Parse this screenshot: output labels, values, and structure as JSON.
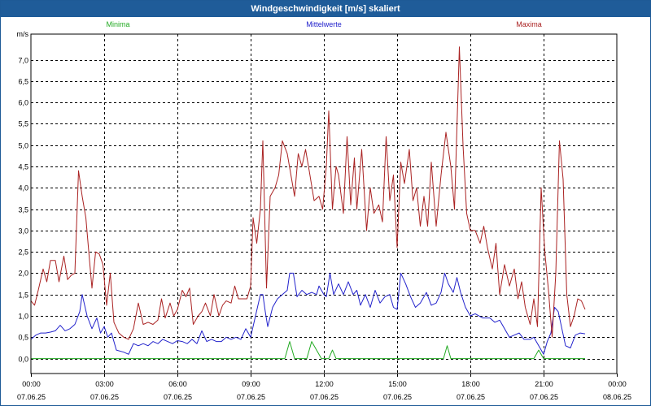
{
  "window": {
    "title": "Windgeschwindigkeit [m/s] skaliert"
  },
  "colors": {
    "minima": "#22aa22",
    "mittel": "#2222cc",
    "maxima": "#aa2222",
    "grid": "#000000"
  },
  "chart_data": {
    "type": "line",
    "title": "Windgeschwindigkeit [m/s] skaliert",
    "ylabel": "m/s",
    "ylim": [
      -0.35,
      7.6
    ],
    "xlim_hours": [
      0,
      24
    ],
    "grid": true,
    "legend_placement": "top",
    "yticks": [
      {
        "v": 0.0,
        "label": "0,0"
      },
      {
        "v": 0.5,
        "label": "0,5"
      },
      {
        "v": 1.0,
        "label": "1,0"
      },
      {
        "v": 1.5,
        "label": "1,5"
      },
      {
        "v": 2.0,
        "label": "2,0"
      },
      {
        "v": 2.5,
        "label": "2,5"
      },
      {
        "v": 3.0,
        "label": "3,0"
      },
      {
        "v": 3.5,
        "label": "3,5"
      },
      {
        "v": 4.0,
        "label": "4,0"
      },
      {
        "v": 4.5,
        "label": "4,5"
      },
      {
        "v": 5.0,
        "label": "5,0"
      },
      {
        "v": 5.5,
        "label": "5,5"
      },
      {
        "v": 6.0,
        "label": "6,0"
      },
      {
        "v": 6.5,
        "label": "6,5"
      },
      {
        "v": 7.0,
        "label": "7,0"
      }
    ],
    "xticks": [
      {
        "h": 0,
        "time": "00:00",
        "date": "07.06.25"
      },
      {
        "h": 3,
        "time": "03:00",
        "date": "07.06.25"
      },
      {
        "h": 6,
        "time": "06:00",
        "date": "07.06.25"
      },
      {
        "h": 9,
        "time": "09:00",
        "date": "07.06.25"
      },
      {
        "h": 12,
        "time": "12:00",
        "date": "07.06.25"
      },
      {
        "h": 15,
        "time": "15:00",
        "date": "07.06.25"
      },
      {
        "h": 18,
        "time": "18:00",
        "date": "07.06.25"
      },
      {
        "h": 21,
        "time": "21:00",
        "date": "07.06.25"
      },
      {
        "h": 24,
        "time": "00:00",
        "date": "08.06.25"
      }
    ],
    "series": [
      {
        "name": "Minima",
        "color": "#22aa22",
        "points": [
          [
            0,
            0
          ],
          [
            10.4,
            0
          ],
          [
            10.6,
            0.4
          ],
          [
            10.8,
            0
          ],
          [
            11.3,
            0
          ],
          [
            11.5,
            0.4
          ],
          [
            11.9,
            0
          ],
          [
            12.2,
            0
          ],
          [
            12.35,
            0.2
          ],
          [
            12.5,
            0
          ],
          [
            16.9,
            0
          ],
          [
            17.05,
            0.3
          ],
          [
            17.2,
            0
          ],
          [
            20.6,
            0
          ],
          [
            20.8,
            0.2
          ],
          [
            21.0,
            0
          ],
          [
            22.7,
            0
          ]
        ]
      },
      {
        "name": "Mittelwerte",
        "color": "#2222cc",
        "points": [
          [
            0,
            0.45
          ],
          [
            0.2,
            0.55
          ],
          [
            0.4,
            0.6
          ],
          [
            0.6,
            0.6
          ],
          [
            0.8,
            0.62
          ],
          [
            1.0,
            0.65
          ],
          [
            1.2,
            0.78
          ],
          [
            1.4,
            0.65
          ],
          [
            1.6,
            0.7
          ],
          [
            1.8,
            0.8
          ],
          [
            2.0,
            1.1
          ],
          [
            2.1,
            1.5
          ],
          [
            2.3,
            1.0
          ],
          [
            2.5,
            0.7
          ],
          [
            2.7,
            0.95
          ],
          [
            2.85,
            0.6
          ],
          [
            3.0,
            0.75
          ],
          [
            3.15,
            0.5
          ],
          [
            3.3,
            0.6
          ],
          [
            3.5,
            0.2
          ],
          [
            3.8,
            0.15
          ],
          [
            4.0,
            0.1
          ],
          [
            4.2,
            0.35
          ],
          [
            4.4,
            0.3
          ],
          [
            4.6,
            0.35
          ],
          [
            4.8,
            0.3
          ],
          [
            5.0,
            0.4
          ],
          [
            5.2,
            0.35
          ],
          [
            5.4,
            0.45
          ],
          [
            5.6,
            0.4
          ],
          [
            5.8,
            0.35
          ],
          [
            6.0,
            0.42
          ],
          [
            6.2,
            0.4
          ],
          [
            6.4,
            0.35
          ],
          [
            6.6,
            0.45
          ],
          [
            6.8,
            0.35
          ],
          [
            7.0,
            0.65
          ],
          [
            7.2,
            0.4
          ],
          [
            7.4,
            0.45
          ],
          [
            7.6,
            0.4
          ],
          [
            7.8,
            0.4
          ],
          [
            8.0,
            0.5
          ],
          [
            8.2,
            0.45
          ],
          [
            8.4,
            0.5
          ],
          [
            8.6,
            0.45
          ],
          [
            8.8,
            0.7
          ],
          [
            9.0,
            0.5
          ],
          [
            9.2,
            1.0
          ],
          [
            9.4,
            1.5
          ],
          [
            9.5,
            1.5
          ],
          [
            9.6,
            1.1
          ],
          [
            9.7,
            0.75
          ],
          [
            9.9,
            1.2
          ],
          [
            10.1,
            1.4
          ],
          [
            10.3,
            1.5
          ],
          [
            10.5,
            1.6
          ],
          [
            10.6,
            2.0
          ],
          [
            10.75,
            2.0
          ],
          [
            10.9,
            1.45
          ],
          [
            11.1,
            1.6
          ],
          [
            11.3,
            1.5
          ],
          [
            11.5,
            1.55
          ],
          [
            11.7,
            1.5
          ],
          [
            11.8,
            1.7
          ],
          [
            12.0,
            1.5
          ],
          [
            12.1,
            1.45
          ],
          [
            12.25,
            2.0
          ],
          [
            12.4,
            1.5
          ],
          [
            12.6,
            1.75
          ],
          [
            12.8,
            1.5
          ],
          [
            13.0,
            1.8
          ],
          [
            13.2,
            1.5
          ],
          [
            13.35,
            1.6
          ],
          [
            13.5,
            1.25
          ],
          [
            13.7,
            1.5
          ],
          [
            13.9,
            1.2
          ],
          [
            14.1,
            1.6
          ],
          [
            14.3,
            1.3
          ],
          [
            14.5,
            1.45
          ],
          [
            14.7,
            1.5
          ],
          [
            14.85,
            1.2
          ],
          [
            15.0,
            1.15
          ],
          [
            15.15,
            2.0
          ],
          [
            15.35,
            1.75
          ],
          [
            15.55,
            1.45
          ],
          [
            15.75,
            1.2
          ],
          [
            15.95,
            1.3
          ],
          [
            16.2,
            1.55
          ],
          [
            16.4,
            1.25
          ],
          [
            16.6,
            1.3
          ],
          [
            16.8,
            1.55
          ],
          [
            16.95,
            2.0
          ],
          [
            17.1,
            1.75
          ],
          [
            17.3,
            1.55
          ],
          [
            17.45,
            1.9
          ],
          [
            17.6,
            1.55
          ],
          [
            17.8,
            1.2
          ],
          [
            18.0,
            1.0
          ],
          [
            18.2,
            1.05
          ],
          [
            18.5,
            0.95
          ],
          [
            18.8,
            0.95
          ],
          [
            19.0,
            0.85
          ],
          [
            19.2,
            0.9
          ],
          [
            19.4,
            0.7
          ],
          [
            19.6,
            0.5
          ],
          [
            19.8,
            0.55
          ],
          [
            20.0,
            0.6
          ],
          [
            20.2,
            0.45
          ],
          [
            20.45,
            0.45
          ],
          [
            20.6,
            0.5
          ],
          [
            20.8,
            0.3
          ],
          [
            21.0,
            0.1
          ],
          [
            21.15,
            0.4
          ],
          [
            21.3,
            0.6
          ],
          [
            21.45,
            1.2
          ],
          [
            21.6,
            1.1
          ],
          [
            21.75,
            0.7
          ],
          [
            21.9,
            0.3
          ],
          [
            22.1,
            0.25
          ],
          [
            22.3,
            0.55
          ],
          [
            22.5,
            0.6
          ],
          [
            22.7,
            0.58
          ]
        ]
      },
      {
        "name": "Maxima",
        "color": "#aa2222",
        "points": [
          [
            0,
            1.35
          ],
          [
            0.15,
            1.25
          ],
          [
            0.3,
            1.6
          ],
          [
            0.5,
            2.1
          ],
          [
            0.65,
            1.8
          ],
          [
            0.8,
            2.3
          ],
          [
            1.0,
            2.3
          ],
          [
            1.15,
            1.8
          ],
          [
            1.35,
            2.4
          ],
          [
            1.5,
            1.85
          ],
          [
            1.65,
            1.95
          ],
          [
            1.8,
            2.0
          ],
          [
            1.95,
            4.4
          ],
          [
            2.1,
            3.8
          ],
          [
            2.25,
            3.3
          ],
          [
            2.4,
            2.3
          ],
          [
            2.5,
            1.65
          ],
          [
            2.65,
            2.5
          ],
          [
            2.8,
            2.45
          ],
          [
            2.95,
            2.2
          ],
          [
            3.1,
            1.25
          ],
          [
            3.25,
            2.0
          ],
          [
            3.4,
            0.85
          ],
          [
            3.6,
            0.6
          ],
          [
            3.8,
            0.5
          ],
          [
            4.0,
            0.45
          ],
          [
            4.2,
            0.7
          ],
          [
            4.4,
            1.3
          ],
          [
            4.6,
            0.8
          ],
          [
            4.8,
            0.85
          ],
          [
            5.0,
            0.8
          ],
          [
            5.2,
            0.9
          ],
          [
            5.35,
            1.4
          ],
          [
            5.5,
            0.95
          ],
          [
            5.7,
            1.3
          ],
          [
            5.85,
            1.0
          ],
          [
            6.0,
            1.15
          ],
          [
            6.2,
            1.6
          ],
          [
            6.35,
            1.45
          ],
          [
            6.5,
            1.65
          ],
          [
            6.65,
            0.8
          ],
          [
            6.85,
            1.0
          ],
          [
            7.0,
            1.1
          ],
          [
            7.15,
            1.3
          ],
          [
            7.35,
            1.0
          ],
          [
            7.5,
            1.5
          ],
          [
            7.7,
            1.0
          ],
          [
            7.85,
            1.25
          ],
          [
            8.0,
            1.35
          ],
          [
            8.2,
            1.3
          ],
          [
            8.35,
            1.7
          ],
          [
            8.5,
            1.4
          ],
          [
            8.7,
            1.4
          ],
          [
            8.85,
            1.4
          ],
          [
            9.0,
            1.7
          ],
          [
            9.1,
            3.3
          ],
          [
            9.25,
            2.7
          ],
          [
            9.4,
            3.5
          ],
          [
            9.5,
            5.1
          ],
          [
            9.65,
            1.65
          ],
          [
            9.8,
            3.8
          ],
          [
            10.0,
            4.0
          ],
          [
            10.15,
            4.3
          ],
          [
            10.3,
            5.1
          ],
          [
            10.5,
            4.8
          ],
          [
            10.65,
            4.3
          ],
          [
            10.8,
            3.8
          ],
          [
            10.95,
            4.8
          ],
          [
            11.1,
            4.5
          ],
          [
            11.25,
            4.9
          ],
          [
            11.4,
            4.4
          ],
          [
            11.6,
            3.7
          ],
          [
            11.8,
            3.8
          ],
          [
            11.95,
            3.5
          ],
          [
            12.1,
            4.5
          ],
          [
            12.2,
            5.8
          ],
          [
            12.35,
            3.5
          ],
          [
            12.5,
            4.5
          ],
          [
            12.6,
            4.3
          ],
          [
            12.8,
            3.4
          ],
          [
            12.95,
            5.2
          ],
          [
            13.1,
            3.6
          ],
          [
            13.25,
            4.7
          ],
          [
            13.35,
            3.5
          ],
          [
            13.55,
            4.9
          ],
          [
            13.75,
            3.0
          ],
          [
            13.9,
            4.0
          ],
          [
            14.05,
            3.4
          ],
          [
            14.25,
            3.6
          ],
          [
            14.4,
            3.2
          ],
          [
            14.55,
            5.2
          ],
          [
            14.7,
            3.7
          ],
          [
            14.85,
            4.3
          ],
          [
            15.0,
            2.6
          ],
          [
            15.15,
            4.6
          ],
          [
            15.3,
            4.1
          ],
          [
            15.5,
            4.9
          ],
          [
            15.65,
            3.7
          ],
          [
            15.8,
            4.0
          ],
          [
            15.95,
            3.1
          ],
          [
            16.1,
            3.8
          ],
          [
            16.25,
            3.1
          ],
          [
            16.4,
            4.6
          ],
          [
            16.6,
            3.1
          ],
          [
            16.8,
            4.3
          ],
          [
            17.0,
            5.3
          ],
          [
            17.2,
            4.5
          ],
          [
            17.35,
            3.5
          ],
          [
            17.55,
            7.3
          ],
          [
            17.7,
            5.0
          ],
          [
            17.85,
            3.4
          ],
          [
            18.0,
            3.0
          ],
          [
            18.2,
            3.0
          ],
          [
            18.4,
            2.7
          ],
          [
            18.55,
            3.1
          ],
          [
            18.7,
            2.6
          ],
          [
            18.9,
            2.1
          ],
          [
            19.05,
            2.7
          ],
          [
            19.2,
            1.5
          ],
          [
            19.4,
            2.2
          ],
          [
            19.6,
            1.7
          ],
          [
            19.8,
            2.1
          ],
          [
            19.95,
            1.4
          ],
          [
            20.1,
            1.8
          ],
          [
            20.25,
            1.2
          ],
          [
            20.45,
            0.8
          ],
          [
            20.6,
            1.4
          ],
          [
            20.75,
            0.75
          ],
          [
            20.9,
            4.0
          ],
          [
            21.05,
            2.5
          ],
          [
            21.2,
            1.6
          ],
          [
            21.35,
            0.5
          ],
          [
            21.5,
            2.0
          ],
          [
            21.65,
            5.1
          ],
          [
            21.8,
            4.2
          ],
          [
            21.95,
            1.5
          ],
          [
            22.1,
            0.75
          ],
          [
            22.25,
            1.0
          ],
          [
            22.4,
            1.4
          ],
          [
            22.55,
            1.35
          ],
          [
            22.7,
            1.15
          ]
        ]
      }
    ]
  }
}
